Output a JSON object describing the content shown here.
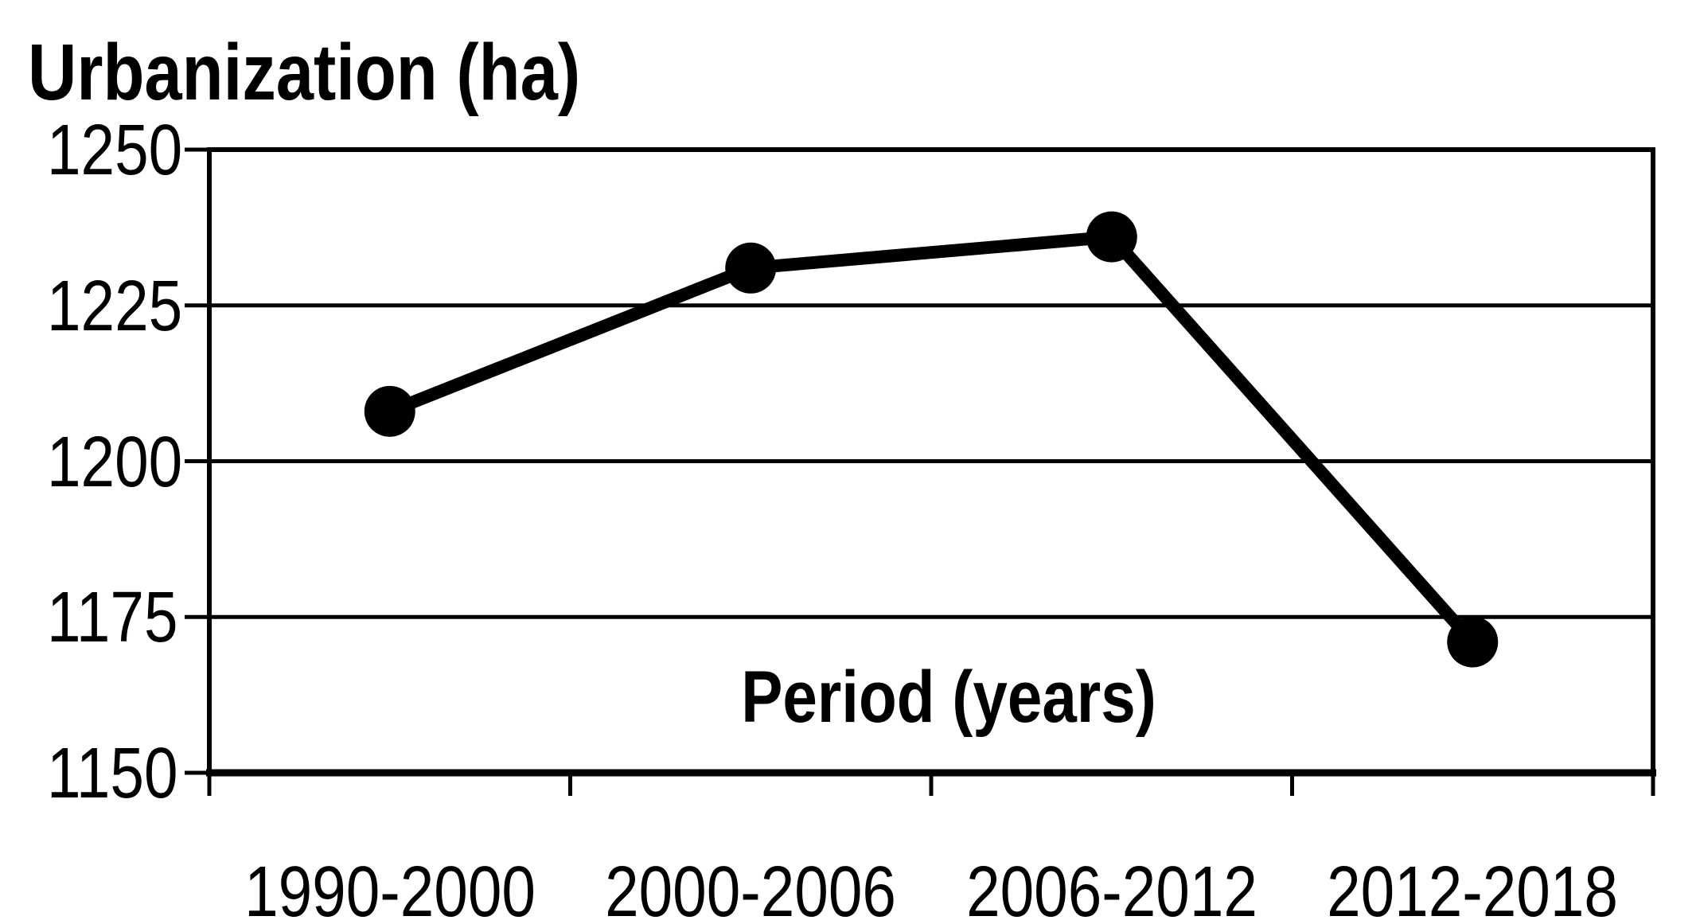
{
  "chart_data": {
    "type": "line",
    "title": "Urbanization (ha)",
    "xlabel": "Period (years)",
    "ylabel": "",
    "categories": [
      "1990-2000",
      "2000-2006",
      "2006-2012",
      "2012-2018"
    ],
    "values": [
      1208,
      1231,
      1236,
      1171
    ],
    "ylim": [
      1150,
      1250
    ],
    "yticks": [
      1150,
      1175,
      1200,
      1225,
      1250
    ],
    "grid": true,
    "legend": false,
    "marker": "filled-circle",
    "series_color": "#000000",
    "axis_color": "#000000",
    "background_color": "#ffffff"
  }
}
